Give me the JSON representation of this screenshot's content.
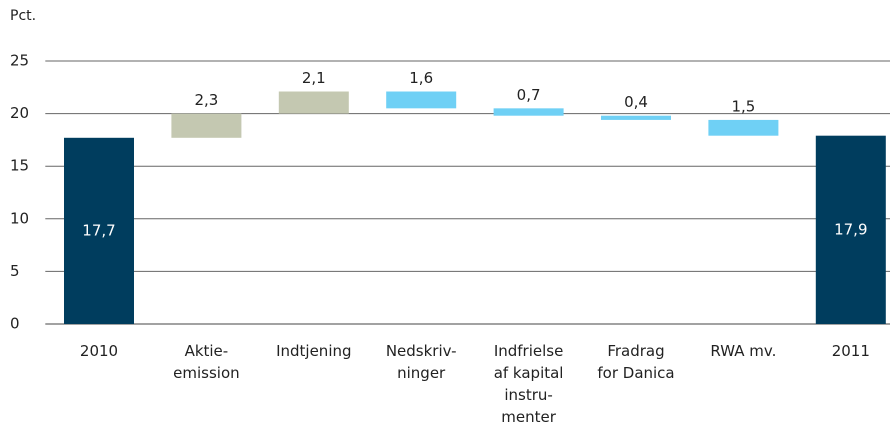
{
  "chart_data": {
    "type": "waterfall",
    "y_label": "Pct.",
    "categories": [
      "2010",
      "Aktie-\nemission",
      "Indtjening",
      "Nedskriv-\nninger",
      "Indfrielse\naf kapital\ninstru-\nmenter",
      "Fradrag\nfor Danica",
      "RWA mv.",
      "2011"
    ],
    "values": [
      17.7,
      2.3,
      2.1,
      -1.6,
      -0.7,
      -0.4,
      -1.5,
      17.9
    ],
    "value_labels": [
      "17,7",
      "2,3",
      "2,1",
      "1,6",
      "0,7",
      "0,4",
      "1,5",
      "17,9"
    ],
    "measure": [
      "absolute",
      "relative",
      "relative",
      "relative",
      "relative",
      "relative",
      "relative",
      "absolute"
    ],
    "colors": [
      "#003d5e",
      "#c4c8b1",
      "#c4c8b1",
      "#6fd0f5",
      "#6fd0f5",
      "#6fd0f5",
      "#6fd0f5",
      "#003d5e"
    ],
    "ylim": [
      0,
      25
    ],
    "yticks": [
      0,
      5,
      10,
      15,
      20,
      25
    ],
    "grid": true
  }
}
